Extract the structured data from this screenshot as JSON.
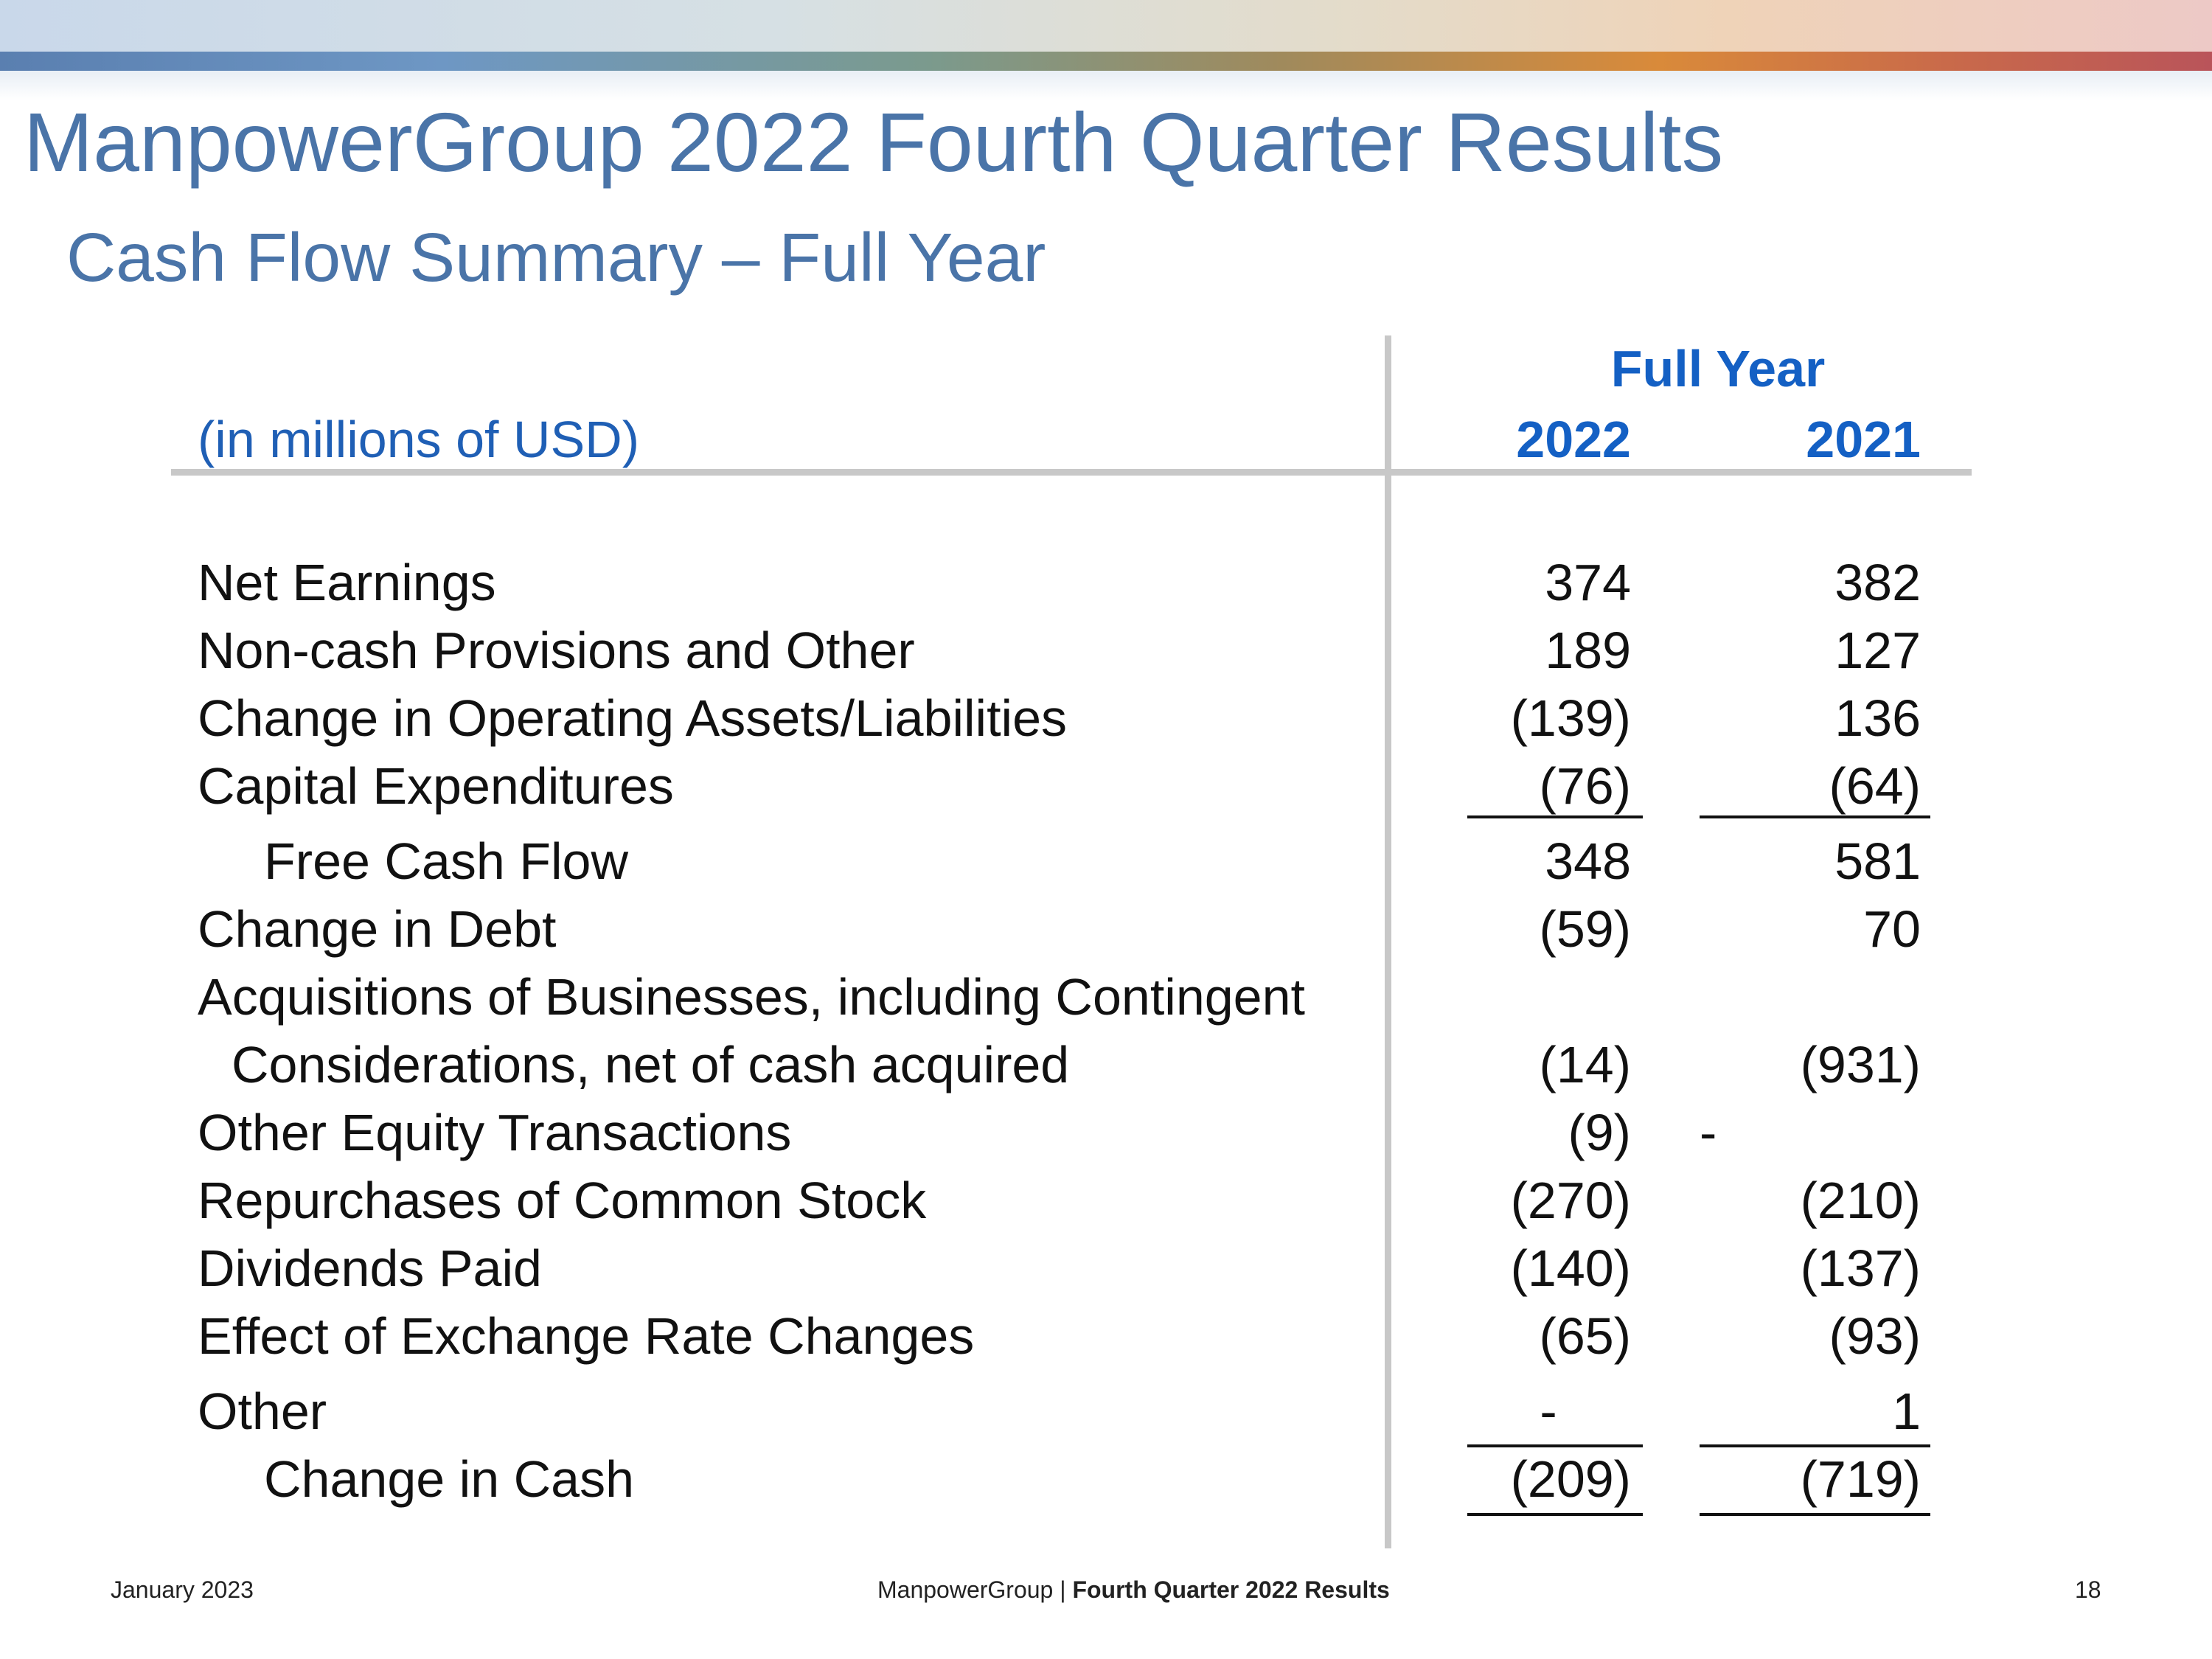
{
  "slide": {
    "title": "ManpowerGroup 2022 Fourth Quarter Results",
    "subtitle": "Cash Flow Summary – Full Year"
  },
  "table": {
    "units": "(in millions of USD)",
    "group_header": "Full Year",
    "columns": [
      "2022",
      "2021"
    ],
    "rows": [
      {
        "label": "Net Earnings",
        "v2022": "374",
        "v2021": "382"
      },
      {
        "label": "Non-cash Provisions and Other",
        "v2022": "189",
        "v2021": "127"
      },
      {
        "label": "Change in Operating Assets/Liabilities",
        "v2022": "(139)",
        "v2021": "136"
      },
      {
        "label": "Capital Expenditures",
        "v2022": "(76)",
        "v2021": "(64)"
      },
      {
        "label": "Free Cash Flow",
        "v2022": "348",
        "v2021": "581"
      },
      {
        "label": "Change in Debt",
        "v2022": "(59)",
        "v2021": "70"
      },
      {
        "label": "Acquisitions of Businesses, including Contingent",
        "v2022": "",
        "v2021": ""
      },
      {
        "label": "Considerations, net of cash acquired",
        "v2022": "(14)",
        "v2021": "(931)"
      },
      {
        "label": "Other Equity Transactions",
        "v2022": "(9)",
        "v2021": "-"
      },
      {
        "label": "Repurchases of Common Stock",
        "v2022": "(270)",
        "v2021": "(210)"
      },
      {
        "label": "Dividends Paid",
        "v2022": "(140)",
        "v2021": "(137)"
      },
      {
        "label": "Effect of Exchange Rate Changes",
        "v2022": "(65)",
        "v2021": "(93)"
      },
      {
        "label": "Other",
        "v2022": "-",
        "v2021": "1"
      },
      {
        "label": "Change in Cash",
        "v2022": "(209)",
        "v2021": "(719)"
      }
    ]
  },
  "footer": {
    "date": "January 2023",
    "company": "ManpowerGroup  |",
    "report": "Fourth Quarter 2022 Results",
    "page": "18"
  },
  "colors": {
    "title": "#4a74a8",
    "table_header": "#1460c4",
    "rule_gray": "#c8c8c8"
  }
}
